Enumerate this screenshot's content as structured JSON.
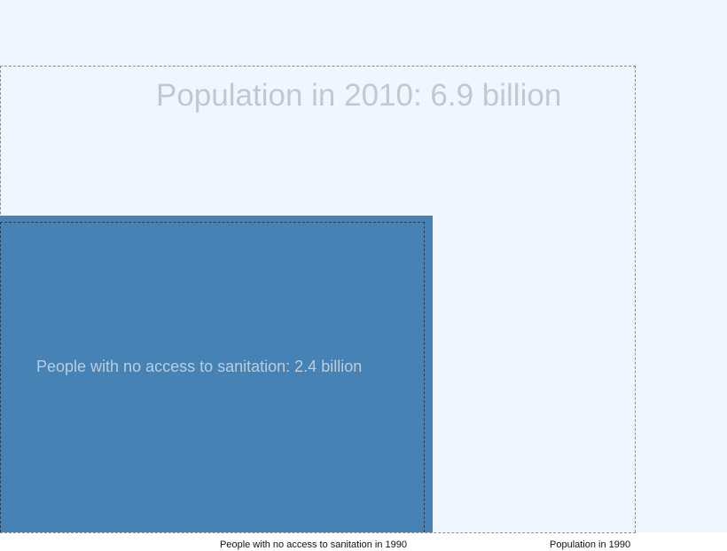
{
  "diagram": {
    "population_2010_label": "Population in 2010: 6.9 billion",
    "no_sanitation_label": "People with no access to sanitation: 2.4 billion",
    "footer": {
      "no_sanitation_1990": "People with no access to sanitation in 1990",
      "population_1990": "Population in 1990"
    },
    "colors": {
      "background": "#eff6fe",
      "no_sanitation_fill": "#4682b4",
      "large_label": "#c3c8cf",
      "inner_label": "#b8cde0",
      "dashed_frame": "#8a8f96"
    }
  }
}
